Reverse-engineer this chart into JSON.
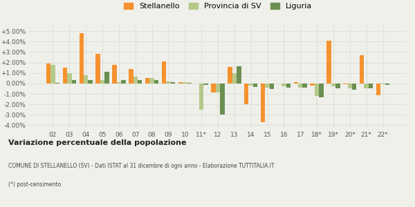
{
  "years": [
    "02",
    "03",
    "04",
    "05",
    "06",
    "07",
    "08",
    "09",
    "10",
    "11*",
    "12",
    "13",
    "14",
    "15",
    "16",
    "17",
    "18*",
    "19*",
    "20*",
    "21*",
    "22*"
  ],
  "stellanello": [
    1.9,
    1.5,
    4.8,
    2.85,
    1.8,
    1.35,
    0.55,
    2.1,
    0.1,
    0.0,
    -0.9,
    1.6,
    -2.0,
    -3.7,
    0.0,
    0.15,
    -0.2,
    4.1,
    -0.1,
    2.7,
    -1.1
  ],
  "provincia_sv": [
    1.75,
    1.0,
    0.8,
    0.35,
    0.15,
    0.65,
    0.5,
    0.2,
    0.15,
    -2.5,
    -0.85,
    1.0,
    -0.2,
    -0.4,
    -0.3,
    -0.4,
    -1.2,
    -0.3,
    -0.5,
    -0.45,
    -0.1
  ],
  "liguria": [
    0.05,
    0.3,
    0.35,
    1.1,
    0.3,
    0.35,
    0.3,
    0.15,
    0.05,
    -0.15,
    -3.0,
    1.65,
    -0.35,
    -0.55,
    -0.4,
    -0.4,
    -1.3,
    -0.5,
    -0.6,
    -0.5,
    -0.15
  ],
  "color_stellanello": "#f5922f",
  "color_provincia": "#b5c98a",
  "color_liguria": "#6b8f52",
  "background_color": "#f0f0eb",
  "grid_color": "#e0e0da",
  "ylim_min": -4.3,
  "ylim_max": 5.6,
  "yticks": [
    -4.0,
    -3.0,
    -2.0,
    -1.0,
    0.0,
    1.0,
    2.0,
    3.0,
    4.0,
    5.0
  ],
  "title": "Variazione percentuale della popolazione",
  "subtitle1": "COMUNE DI STELLANELLO (SV) - Dati ISTAT al 31 dicembre di ogni anno - Elaborazione TUTTITALIA.IT",
  "subtitle2": "(*) post-censimento",
  "legend_labels": [
    "Stellanello",
    "Provincia di SV",
    "Liguria"
  ]
}
